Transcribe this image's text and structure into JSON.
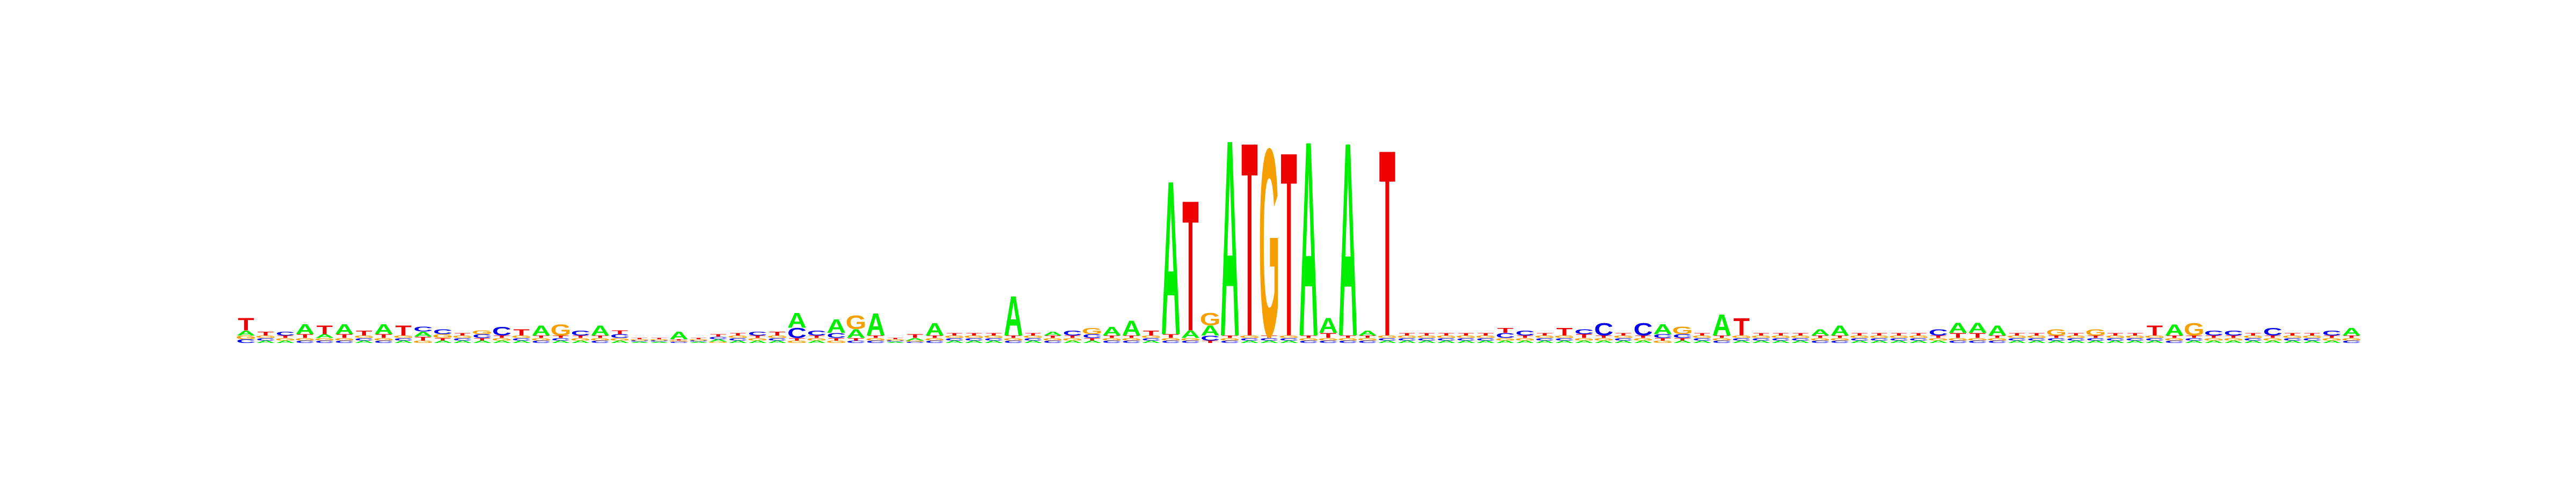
{
  "chart_data": {
    "type": "sequence-logo",
    "title": "",
    "xlabel": "",
    "ylabel": "",
    "ylim": [
      0,
      2
    ],
    "grid": false,
    "legend": "none",
    "colors": {
      "A": "#00ee00",
      "C": "#0000ee",
      "G": "#f5a000",
      "T": "#ee0000"
    },
    "positions": [
      {
        "A": 0.04,
        "C": 0.03,
        "G": 0.03,
        "T": 0.1
      },
      {
        "A": 0.02,
        "C": 0.02,
        "G": 0.02,
        "T": 0.03
      },
      {
        "A": 0.02,
        "C": 0.03,
        "G": 0.02,
        "T": 0.02
      },
      {
        "A": 0.08,
        "C": 0.02,
        "G": 0.02,
        "T": 0.03
      },
      {
        "A": 0.03,
        "C": 0.02,
        "G": 0.02,
        "T": 0.07
      },
      {
        "A": 0.08,
        "C": 0.02,
        "G": 0.02,
        "T": 0.03
      },
      {
        "A": 0.02,
        "C": 0.02,
        "G": 0.02,
        "T": 0.04
      },
      {
        "A": 0.08,
        "C": 0.02,
        "G": 0.02,
        "T": 0.03
      },
      {
        "A": 0.02,
        "C": 0.02,
        "G": 0.02,
        "T": 0.08
      },
      {
        "A": 0.04,
        "C": 0.04,
        "G": 0.02,
        "T": 0.03
      },
      {
        "A": 0.02,
        "C": 0.04,
        "G": 0.03,
        "T": 0.02
      },
      {
        "A": 0.02,
        "C": 0.02,
        "G": 0.02,
        "T": 0.02
      },
      {
        "A": 0.02,
        "C": 0.03,
        "G": 0.03,
        "T": 0.02
      },
      {
        "A": 0.02,
        "C": 0.07,
        "G": 0.02,
        "T": 0.02
      },
      {
        "A": 0.02,
        "C": 0.02,
        "G": 0.02,
        "T": 0.05
      },
      {
        "A": 0.08,
        "C": 0.02,
        "G": 0.02,
        "T": 0.02
      },
      {
        "A": 0.02,
        "C": 0.02,
        "G": 0.09,
        "T": 0.02
      },
      {
        "A": 0.02,
        "C": 0.04,
        "G": 0.02,
        "T": 0.02
      },
      {
        "A": 0.08,
        "C": 0.02,
        "G": 0.02,
        "T": 0.02
      },
      {
        "A": 0.02,
        "C": 0.03,
        "G": 0.02,
        "T": 0.03
      },
      {
        "A": 0.01,
        "C": 0.01,
        "G": 0.01,
        "T": 0.01
      },
      {
        "A": 0.01,
        "C": 0.01,
        "G": 0.01,
        "T": 0.01
      },
      {
        "A": 0.06,
        "C": 0.01,
        "G": 0.01,
        "T": 0.01
      },
      {
        "A": 0.01,
        "C": 0.01,
        "G": 0.01,
        "T": 0.01
      },
      {
        "A": 0.02,
        "C": 0.02,
        "G": 0.01,
        "T": 0.02
      },
      {
        "A": 0.02,
        "C": 0.02,
        "G": 0.02,
        "T": 0.02
      },
      {
        "A": 0.02,
        "C": 0.03,
        "G": 0.02,
        "T": 0.02
      },
      {
        "A": 0.02,
        "C": 0.02,
        "G": 0.02,
        "T": 0.03
      },
      {
        "A": 0.12,
        "C": 0.08,
        "G": 0.02,
        "T": 0.02
      },
      {
        "A": 0.02,
        "C": 0.04,
        "G": 0.02,
        "T": 0.02
      },
      {
        "A": 0.11,
        "C": 0.04,
        "G": 0.02,
        "T": 0.02
      },
      {
        "A": 0.07,
        "C": 0.02,
        "G": 0.11,
        "T": 0.02
      },
      {
        "A": 0.18,
        "C": 0.02,
        "G": 0.02,
        "T": 0.02
      },
      {
        "A": 0.01,
        "C": 0.01,
        "G": 0.01,
        "T": 0.01
      },
      {
        "A": 0.02,
        "C": 0.01,
        "G": 0.01,
        "T": 0.03
      },
      {
        "A": 0.1,
        "C": 0.02,
        "G": 0.02,
        "T": 0.02
      },
      {
        "A": 0.02,
        "C": 0.02,
        "G": 0.02,
        "T": 0.02
      },
      {
        "A": 0.02,
        "C": 0.02,
        "G": 0.02,
        "T": 0.02
      },
      {
        "A": 0.02,
        "C": 0.02,
        "G": 0.02,
        "T": 0.02
      },
      {
        "A": 0.32,
        "C": 0.02,
        "G": 0.02,
        "T": 0.02
      },
      {
        "A": 0.02,
        "C": 0.02,
        "G": 0.02,
        "T": 0.02
      },
      {
        "A": 0.03,
        "C": 0.02,
        "G": 0.02,
        "T": 0.02
      },
      {
        "A": 0.02,
        "C": 0.04,
        "G": 0.02,
        "T": 0.02
      },
      {
        "A": 0.02,
        "C": 0.03,
        "G": 0.05,
        "T": 0.02
      },
      {
        "A": 0.07,
        "C": 0.02,
        "G": 0.02,
        "T": 0.02
      },
      {
        "A": 0.12,
        "C": 0.02,
        "G": 0.02,
        "T": 0.02
      },
      {
        "A": 0.02,
        "C": 0.02,
        "G": 0.02,
        "T": 0.04
      },
      {
        "A": 1.24,
        "C": 0.02,
        "G": 0.02,
        "T": 0.03
      },
      {
        "A": 0.06,
        "C": 0.02,
        "G": 0.02,
        "T": 1.05
      },
      {
        "A": 0.08,
        "C": 0.04,
        "G": 0.1,
        "T": 0.02
      },
      {
        "A": 1.58,
        "C": 0.02,
        "G": 0.02,
        "T": 0.02
      },
      {
        "A": 0.02,
        "C": 0.02,
        "G": 0.02,
        "T": 1.56
      },
      {
        "A": 0.02,
        "C": 0.02,
        "G": 1.51,
        "T": 0.02
      },
      {
        "A": 0.02,
        "C": 0.02,
        "G": 0.02,
        "T": 1.48
      },
      {
        "A": 1.57,
        "C": 0.02,
        "G": 0.02,
        "T": 0.02
      },
      {
        "A": 0.12,
        "C": 0.02,
        "G": 0.02,
        "T": 0.04
      },
      {
        "A": 1.56,
        "C": 0.02,
        "G": 0.02,
        "T": 0.02
      },
      {
        "A": 0.04,
        "C": 0.02,
        "G": 0.02,
        "T": 0.02
      },
      {
        "A": 0.02,
        "C": 0.02,
        "G": 0.02,
        "T": 1.5
      },
      {
        "A": 0.02,
        "C": 0.02,
        "G": 0.02,
        "T": 0.02
      },
      {
        "A": 0.02,
        "C": 0.02,
        "G": 0.02,
        "T": 0.02
      },
      {
        "A": 0.02,
        "C": 0.02,
        "G": 0.02,
        "T": 0.02
      },
      {
        "A": 0.02,
        "C": 0.02,
        "G": 0.02,
        "T": 0.02
      },
      {
        "A": 0.02,
        "C": 0.02,
        "G": 0.02,
        "T": 0.02
      },
      {
        "A": 0.02,
        "C": 0.04,
        "G": 0.02,
        "T": 0.04
      },
      {
        "A": 0.02,
        "C": 0.04,
        "G": 0.02,
        "T": 0.02
      },
      {
        "A": 0.02,
        "C": 0.02,
        "G": 0.02,
        "T": 0.02
      },
      {
        "A": 0.02,
        "C": 0.02,
        "G": 0.02,
        "T": 0.06
      },
      {
        "A": 0.02,
        "C": 0.04,
        "G": 0.02,
        "T": 0.03
      },
      {
        "A": 0.02,
        "C": 0.1,
        "G": 0.02,
        "T": 0.02
      },
      {
        "A": 0.02,
        "C": 0.02,
        "G": 0.02,
        "T": 0.02
      },
      {
        "A": 0.02,
        "C": 0.1,
        "G": 0.02,
        "T": 0.02
      },
      {
        "A": 0.08,
        "C": 0.03,
        "G": 0.02,
        "T": 0.02
      },
      {
        "A": 0.02,
        "C": 0.03,
        "G": 0.06,
        "T": 0.02
      },
      {
        "A": 0.02,
        "C": 0.02,
        "G": 0.02,
        "T": 0.02
      },
      {
        "A": 0.17,
        "C": 0.02,
        "G": 0.02,
        "T": 0.02
      },
      {
        "A": 0.02,
        "C": 0.02,
        "G": 0.02,
        "T": 0.14
      },
      {
        "A": 0.02,
        "C": 0.02,
        "G": 0.02,
        "T": 0.02
      },
      {
        "A": 0.02,
        "C": 0.02,
        "G": 0.02,
        "T": 0.02
      },
      {
        "A": 0.02,
        "C": 0.02,
        "G": 0.02,
        "T": 0.02
      },
      {
        "A": 0.05,
        "C": 0.02,
        "G": 0.02,
        "T": 0.02
      },
      {
        "A": 0.08,
        "C": 0.02,
        "G": 0.02,
        "T": 0.02
      },
      {
        "A": 0.02,
        "C": 0.02,
        "G": 0.02,
        "T": 0.02
      },
      {
        "A": 0.02,
        "C": 0.02,
        "G": 0.02,
        "T": 0.02
      },
      {
        "A": 0.02,
        "C": 0.02,
        "G": 0.02,
        "T": 0.02
      },
      {
        "A": 0.02,
        "C": 0.02,
        "G": 0.02,
        "T": 0.02
      },
      {
        "A": 0.02,
        "C": 0.05,
        "G": 0.02,
        "T": 0.02
      },
      {
        "A": 0.08,
        "C": 0.02,
        "G": 0.02,
        "T": 0.04
      },
      {
        "A": 0.08,
        "C": 0.02,
        "G": 0.02,
        "T": 0.04
      },
      {
        "A": 0.08,
        "C": 0.02,
        "G": 0.02,
        "T": 0.02
      },
      {
        "A": 0.02,
        "C": 0.02,
        "G": 0.02,
        "T": 0.02
      },
      {
        "A": 0.02,
        "C": 0.02,
        "G": 0.02,
        "T": 0.02
      },
      {
        "A": 0.02,
        "C": 0.02,
        "G": 0.05,
        "T": 0.02
      },
      {
        "A": 0.02,
        "C": 0.02,
        "G": 0.02,
        "T": 0.02
      },
      {
        "A": 0.02,
        "C": 0.02,
        "G": 0.05,
        "T": 0.02
      },
      {
        "A": 0.02,
        "C": 0.02,
        "G": 0.02,
        "T": 0.02
      },
      {
        "A": 0.02,
        "C": 0.02,
        "G": 0.02,
        "T": 0.02
      },
      {
        "A": 0.02,
        "C": 0.02,
        "G": 0.02,
        "T": 0.08
      },
      {
        "A": 0.09,
        "C": 0.02,
        "G": 0.02,
        "T": 0.02
      },
      {
        "A": 0.02,
        "C": 0.02,
        "G": 0.1,
        "T": 0.02
      },
      {
        "A": 0.02,
        "C": 0.04,
        "G": 0.02,
        "T": 0.02
      },
      {
        "A": 0.02,
        "C": 0.04,
        "G": 0.02,
        "T": 0.02
      },
      {
        "A": 0.02,
        "C": 0.02,
        "G": 0.02,
        "T": 0.02
      },
      {
        "A": 0.02,
        "C": 0.06,
        "G": 0.02,
        "T": 0.02
      },
      {
        "A": 0.02,
        "C": 0.02,
        "G": 0.02,
        "T": 0.02
      },
      {
        "A": 0.02,
        "C": 0.02,
        "G": 0.02,
        "T": 0.02
      },
      {
        "A": 0.02,
        "C": 0.04,
        "G": 0.02,
        "T": 0.02
      },
      {
        "A": 0.06,
        "C": 0.02,
        "G": 0.02,
        "T": 0.02
      }
    ]
  }
}
